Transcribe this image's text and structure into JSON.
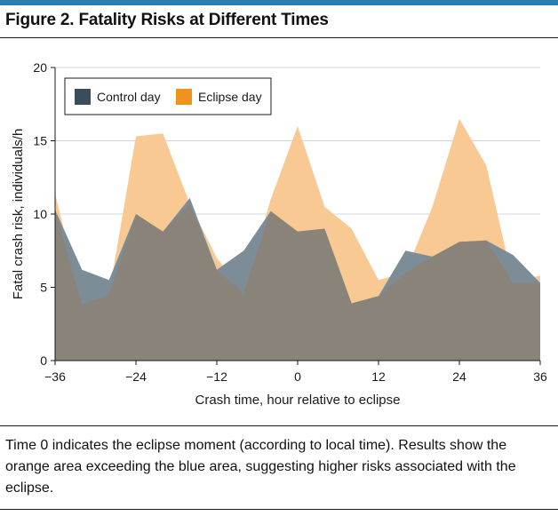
{
  "figure": {
    "title": "Figure 2. Fatality Risks at Different Times",
    "caption": "Time 0 indicates the eclipse moment (according to local time). Results show the orange area exceeding the blue area, suggesting higher risks associated with the eclipse."
  },
  "colors": {
    "accent_rule": "#2a7fb0",
    "control": "#3a4e5a",
    "eclipse": "#f0921e",
    "eclipse_fill": "#f8c993",
    "overlap_fill": "#8a837a",
    "control_fill": "#7c8d98",
    "grid": "#d6d6d6"
  },
  "chart_data": {
    "type": "area",
    "xlabel": "Crash time, hour relative to eclipse",
    "ylabel": "Fatal crash risk, individuals/h",
    "xlim": [
      -36,
      36
    ],
    "ylim": [
      0,
      20
    ],
    "xticks": [
      -36,
      -24,
      -12,
      0,
      12,
      24,
      36
    ],
    "xtick_labels": [
      "−36",
      "−24",
      "−12",
      "0",
      "12",
      "24",
      "36"
    ],
    "yticks": [
      0,
      5,
      10,
      15,
      20
    ],
    "grid": "horizontal",
    "legend_position": "top-left",
    "x": [
      -36,
      -32,
      -28,
      -24,
      -20,
      -16,
      -12,
      -8,
      -4,
      0,
      4,
      8,
      12,
      16,
      20,
      24,
      28,
      32,
      36
    ],
    "series": [
      {
        "name": "Control day",
        "values": [
          10.3,
          6.2,
          5.5,
          10.0,
          8.8,
          11.1,
          6.2,
          7.5,
          10.2,
          8.8,
          9.0,
          3.9,
          4.4,
          7.5,
          7.1,
          8.1,
          8.2,
          7.2,
          5.3
        ]
      },
      {
        "name": "Eclipse day",
        "values": [
          11.4,
          3.8,
          4.5,
          15.3,
          15.5,
          10.7,
          7.0,
          4.6,
          11.0,
          16.0,
          10.5,
          9.0,
          5.5,
          6.0,
          10.5,
          16.5,
          13.3,
          5.3,
          5.8
        ]
      }
    ]
  }
}
